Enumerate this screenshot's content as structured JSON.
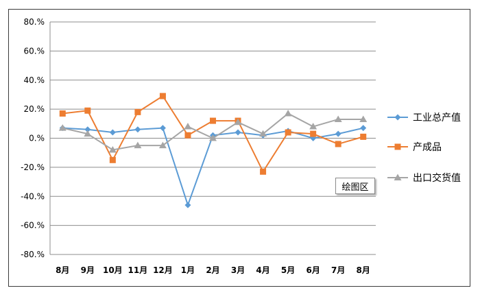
{
  "chart_data": {
    "type": "line",
    "title": "",
    "xlabel": "",
    "ylabel": "",
    "categories": [
      "8月",
      "9月",
      "10月",
      "11月",
      "12月",
      "1月",
      "2月",
      "3月",
      "4月",
      "5月",
      "6月",
      "7月",
      "8月"
    ],
    "ylim": [
      -80,
      80
    ],
    "yticks": [
      "80.%",
      "60.%",
      "40.%",
      "20.%",
      "0.%",
      "-20.%",
      "-40.%",
      "-60.%",
      "-80.%"
    ],
    "ytick_values": [
      80,
      60,
      40,
      20,
      0,
      -20,
      -40,
      -60,
      -80
    ],
    "grid": true,
    "legend_position": "right",
    "series": [
      {
        "name": "工业总产值",
        "color": "#5B9BD5",
        "marker": "diamond",
        "values": [
          7,
          6,
          4,
          6,
          7,
          -46,
          2,
          4,
          2,
          5,
          0,
          3,
          7
        ]
      },
      {
        "name": "产成品",
        "color": "#ED7D31",
        "marker": "square",
        "values": [
          17,
          19,
          -15,
          18,
          29,
          2,
          12,
          12,
          -23,
          4,
          3,
          -4,
          1
        ]
      },
      {
        "name": "出口交货值",
        "color": "#A5A5A5",
        "marker": "triangle",
        "values": [
          7,
          3,
          -8,
          -5,
          -5,
          8,
          0,
          11,
          3,
          17,
          8,
          13,
          13
        ]
      }
    ]
  },
  "tooltip": {
    "text": "绘图区"
  }
}
